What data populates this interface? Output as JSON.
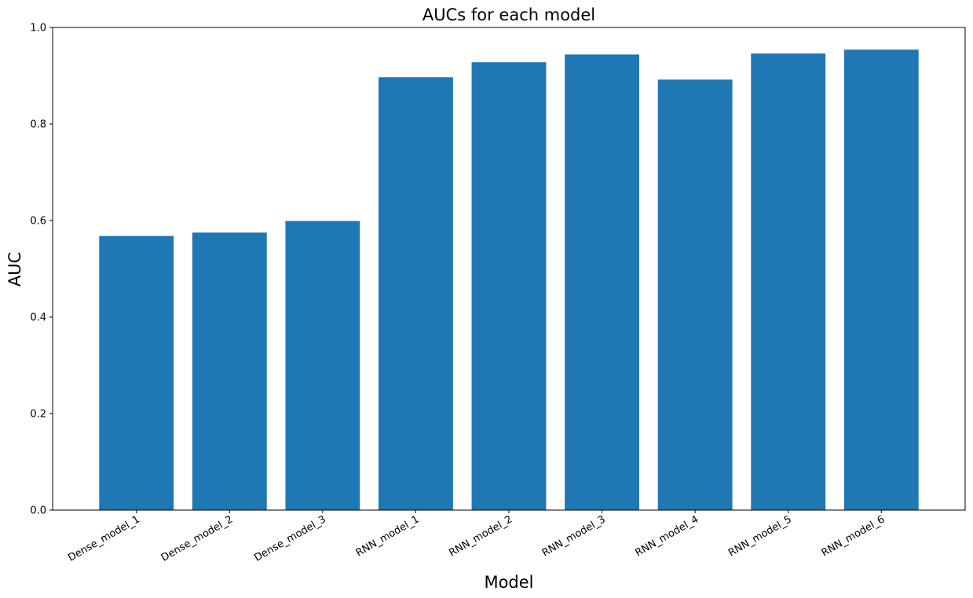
{
  "chart_data": {
    "type": "bar",
    "title": "AUCs for each model",
    "xlabel": "Model",
    "ylabel": "AUC",
    "categories": [
      "Dense_model_1",
      "Dense_model_2",
      "Dense_model_3",
      "RNN_model_1",
      "RNN_model_2",
      "RNN_model_3",
      "RNN_model_4",
      "RNN_model_5",
      "RNN_model_6"
    ],
    "values": [
      0.568,
      0.575,
      0.599,
      0.897,
      0.928,
      0.944,
      0.892,
      0.946,
      0.954
    ],
    "ylim": [
      0,
      1.0
    ],
    "yticks": [
      0.0,
      0.2,
      0.4,
      0.6,
      0.8,
      1.0
    ],
    "ytick_labels": [
      "0.0",
      "0.2",
      "0.4",
      "0.6",
      "0.8",
      "1.0"
    ],
    "xtick_rotation": 30,
    "grid": false,
    "bar_color": "#1f77b4"
  }
}
